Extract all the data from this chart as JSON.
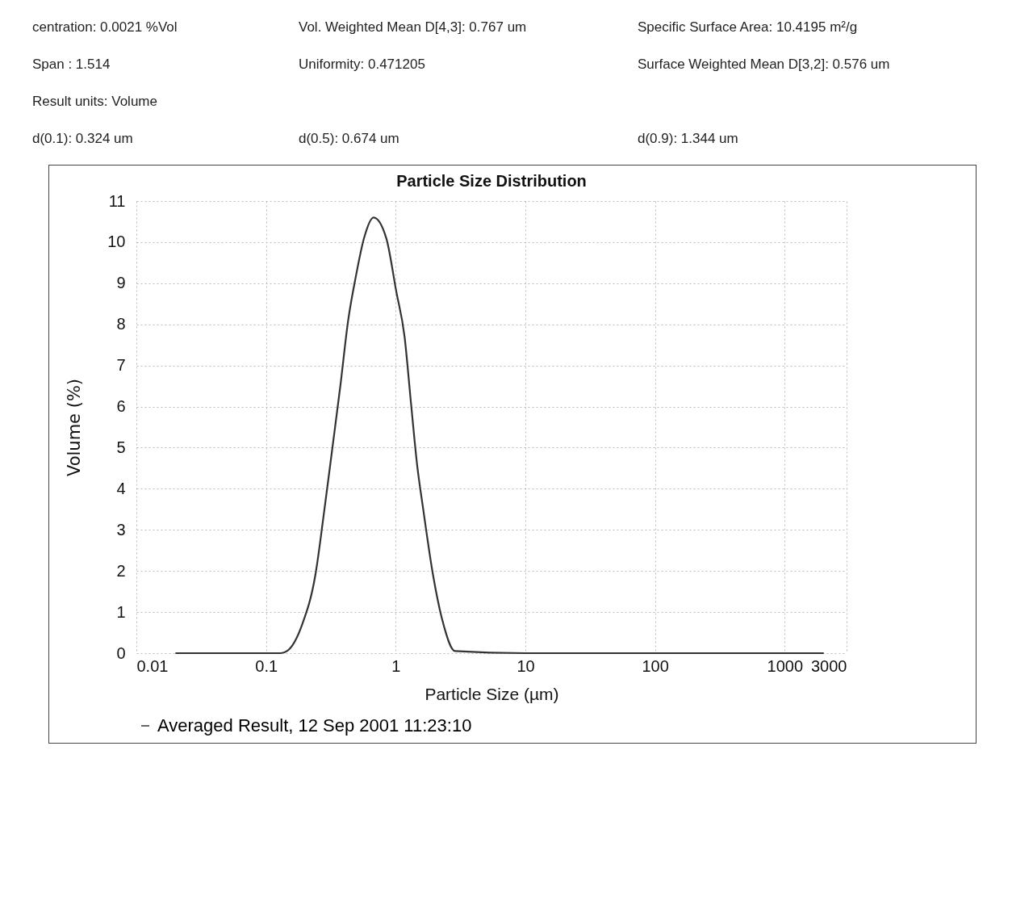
{
  "chart_data": {
    "type": "line",
    "title": "Particle Size Distribution",
    "xlabel": "Particle Size (µm)",
    "ylabel": "Volume (%)",
    "annotations": [
      "centration: 0.0021 %Vol",
      "Vol. Weighted Mean D[4,3]: 0.767 um",
      "Specific Surface Area: 10.4195 m²/g",
      "Span : 1.514",
      "Uniformity: 0.471205",
      "Surface Weighted Mean D[3,2]: 0.576 um",
      "Result units: Volume",
      "d(0.1): 0.324 um",
      "d(0.5): 0.674 um",
      "d(0.9): 1.344 um"
    ],
    "x": [
      0.02,
      0.05,
      0.13,
      0.145,
      0.19,
      0.24,
      0.282,
      0.325,
      0.374,
      0.43,
      0.495,
      0.57,
      0.675,
      0.845,
      1.01,
      1.17,
      1.31,
      1.46,
      1.63,
      1.94,
      2.29,
      2.87,
      10,
      100,
      1000,
      2000
    ],
    "series": [
      {
        "name": "Averaged Result, 12 Sep 2001 11:23:10",
        "color": "#333333",
        "values": [
          0,
          0,
          0,
          0.05,
          0.7,
          1.9,
          3.5,
          5.0,
          6.5,
          8.1,
          9.2,
          10.1,
          10.6,
          10.1,
          8.8,
          7.7,
          6.1,
          4.6,
          3.5,
          1.9,
          0.8,
          0.05,
          0,
          0,
          0,
          0
        ]
      }
    ],
    "xlim": [
      0.01,
      3000
    ],
    "xticks": [
      0.01,
      0.1,
      1,
      10,
      100,
      1000,
      3000
    ],
    "ylim": [
      0,
      11
    ],
    "yticks": [
      0,
      1,
      2,
      3,
      4,
      5,
      6,
      7,
      8,
      9,
      10,
      11
    ],
    "log": "x",
    "grid": true,
    "legend": "bottom",
    "line_style": "solid",
    "marker": "none"
  }
}
